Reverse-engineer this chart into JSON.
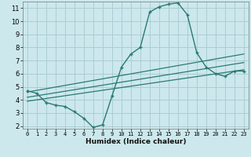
{
  "xlabel": "Humidex (Indice chaleur)",
  "background_color": "#cce8ec",
  "grid_color": "#aacdd4",
  "line_color": "#2a7a72",
  "xlim": [
    -0.5,
    23.5
  ],
  "ylim": [
    1.8,
    11.5
  ],
  "yticks": [
    2,
    3,
    4,
    5,
    6,
    7,
    8,
    9,
    10,
    11
  ],
  "xticks": [
    0,
    1,
    2,
    3,
    4,
    5,
    6,
    7,
    8,
    9,
    10,
    11,
    12,
    13,
    14,
    15,
    16,
    17,
    18,
    19,
    20,
    21,
    22,
    23
  ],
  "series1_x": [
    0,
    1,
    2,
    3,
    4,
    5,
    6,
    7,
    8,
    9,
    10,
    11,
    12,
    13,
    14,
    15,
    16,
    17,
    18,
    19,
    20,
    21,
    22,
    23
  ],
  "series1_y": [
    4.7,
    4.5,
    3.8,
    3.6,
    3.5,
    3.1,
    2.6,
    1.9,
    2.1,
    4.3,
    6.5,
    7.5,
    8.0,
    10.7,
    11.1,
    11.3,
    11.4,
    10.5,
    7.6,
    6.5,
    6.0,
    5.8,
    6.2,
    6.2
  ],
  "regression_lines": [
    {
      "x": [
        0,
        23
      ],
      "y": [
        4.6,
        7.5
      ]
    },
    {
      "x": [
        0,
        23
      ],
      "y": [
        4.2,
        6.85
      ]
    },
    {
      "x": [
        0,
        23
      ],
      "y": [
        3.9,
        6.3
      ]
    }
  ]
}
